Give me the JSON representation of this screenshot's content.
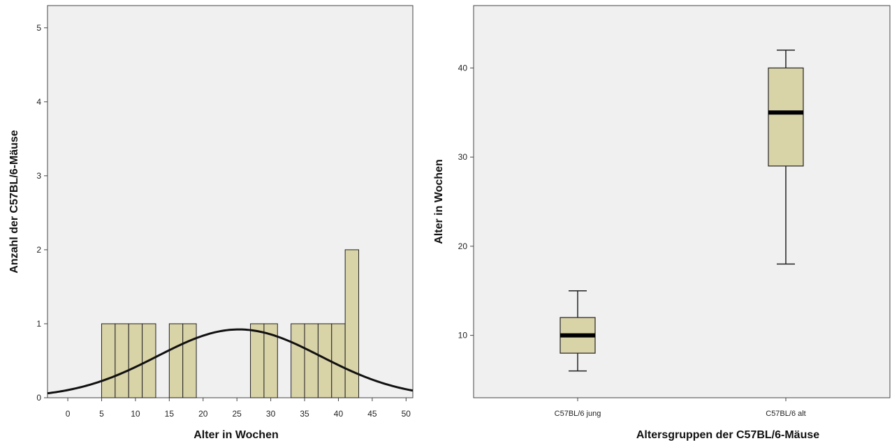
{
  "chart_data": [
    {
      "type": "bar",
      "title": "",
      "xlabel": "Alter in Wochen",
      "ylabel": "Anzahl der C57BL/6-Mäuse",
      "xlim": [
        -3,
        51
      ],
      "ylim": [
        0,
        5.3
      ],
      "xticks": [
        0,
        5,
        10,
        15,
        20,
        25,
        30,
        35,
        40,
        45,
        50
      ],
      "yticks": [
        0,
        1,
        2,
        3,
        4,
        5
      ],
      "bin_width": 2,
      "bins": [
        {
          "start": 5,
          "count": 1
        },
        {
          "start": 7,
          "count": 1
        },
        {
          "start": 9,
          "count": 1
        },
        {
          "start": 11,
          "count": 1
        },
        {
          "start": 15,
          "count": 1
        },
        {
          "start": 17,
          "count": 1
        },
        {
          "start": 27,
          "count": 1
        },
        {
          "start": 29,
          "count": 1
        },
        {
          "start": 33,
          "count": 1
        },
        {
          "start": 35,
          "count": 1
        },
        {
          "start": 37,
          "count": 1
        },
        {
          "start": 39,
          "count": 1
        },
        {
          "start": 41,
          "count": 2
        }
      ],
      "normal_curve": {
        "mean": 25.3,
        "sd": 12.1,
        "n": 14
      },
      "grid": false,
      "colors": {
        "bar_fill": "#d9d3a8",
        "bar_stroke": "#222222",
        "plot_bg": "#f0f0f0",
        "curve": "#111111"
      }
    },
    {
      "type": "box",
      "title": "",
      "xlabel": "Altersgruppen der C57BL/6-Mäuse",
      "ylabel": "Alter in Wochen",
      "ylim": [
        3,
        47
      ],
      "yticks": [
        10,
        20,
        30,
        40
      ],
      "categories": [
        "C57BL/6 jung",
        "C57BL/6 alt"
      ],
      "boxes": [
        {
          "name": "C57BL/6 jung",
          "min": 6,
          "q1": 8,
          "median": 10,
          "q3": 12,
          "max": 15
        },
        {
          "name": "C57BL/6 alt",
          "min": 18,
          "q1": 29,
          "median": 35,
          "q3": 40,
          "max": 42
        }
      ],
      "grid": false,
      "colors": {
        "box_fill": "#d9d3a8",
        "box_stroke": "#222222",
        "plot_bg": "#f0f0f0",
        "median": "#000000"
      }
    }
  ]
}
